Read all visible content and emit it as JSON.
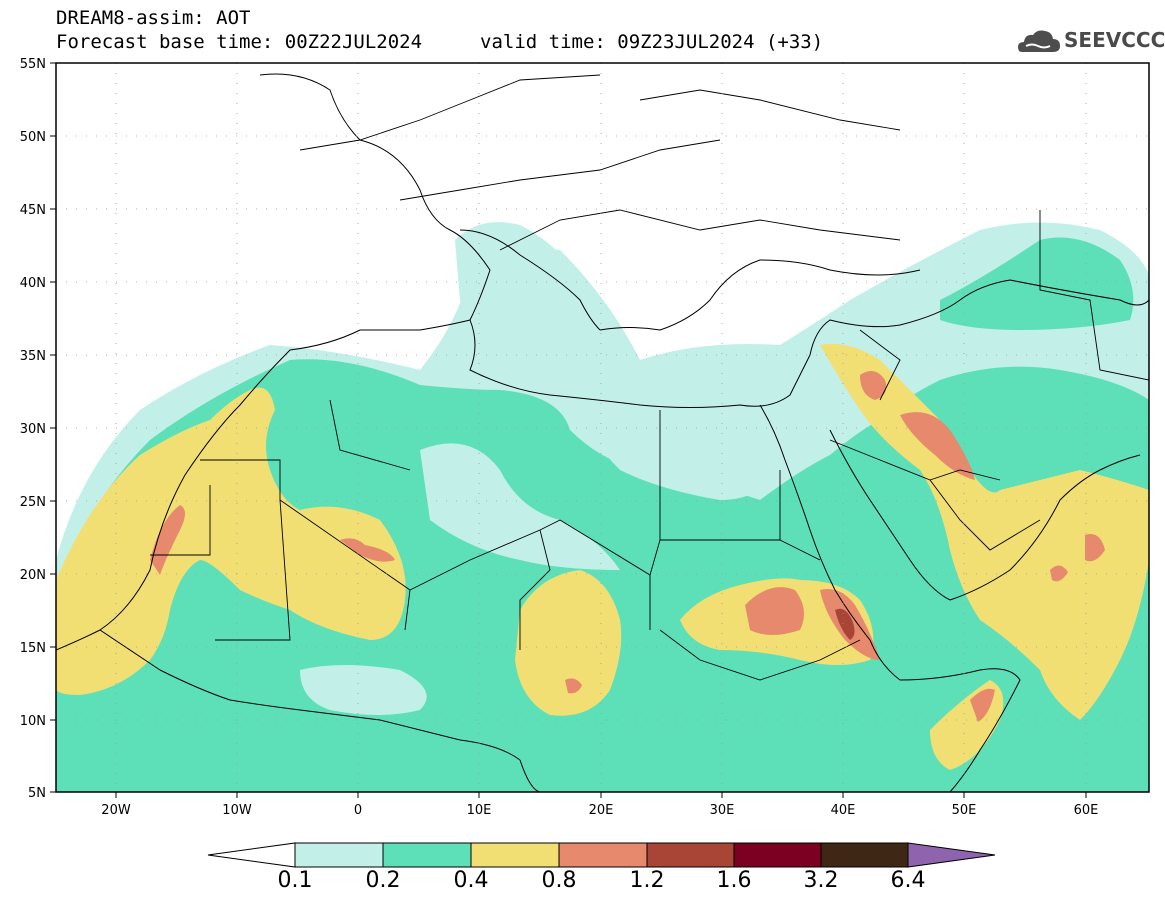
{
  "header": {
    "title": "DREAM8-assim: AOT",
    "base_time": "Forecast base time: 00Z22JUL2024",
    "valid_time": "valid time: 09Z23JUL2024 (+33)"
  },
  "logo": {
    "text": "SEEVCCC",
    "icon": "cloud-icon"
  },
  "map": {
    "lat_labels": [
      "55N",
      "50N",
      "45N",
      "40N",
      "35N",
      "30N",
      "25N",
      "20N",
      "15N",
      "10N",
      "5N"
    ],
    "lon_labels": [
      "20W",
      "10W",
      "0",
      "10E",
      "20E",
      "30E",
      "40E",
      "50E",
      "60E"
    ]
  },
  "colorbar": {
    "labels": [
      "0.1",
      "0.2",
      "0.4",
      "0.8",
      "1.2",
      "1.6",
      "3.2",
      "6.4"
    ],
    "colors": {
      "under": "#ffffff",
      "b0_1": "#c2efe8",
      "b0_2": "#5ddfb8",
      "b0_4": "#f2df74",
      "b0_8": "#e6896c",
      "b1_2": "#a94536",
      "b1_6": "#7c0022",
      "b3_2": "#3f2716",
      "over": "#8f63ad"
    }
  }
}
